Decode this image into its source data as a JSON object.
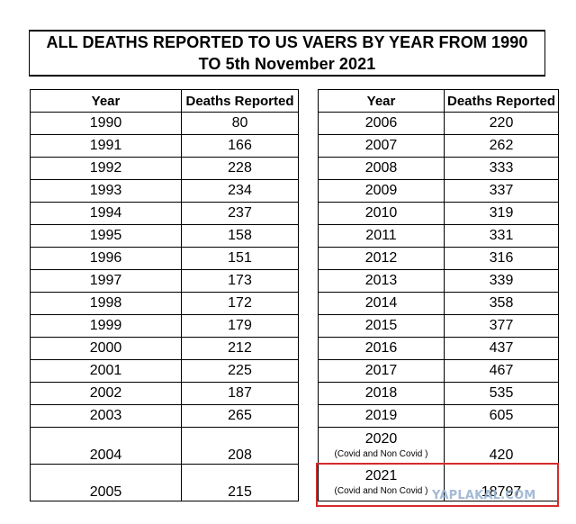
{
  "title": {
    "line1": "ALL DEATHS REPORTED TO US VAERS BY YEAR FROM 1990",
    "line2": "TO 5th November 2021"
  },
  "headers": {
    "year": "Year",
    "deaths": "Deaths Reported"
  },
  "left_rows": [
    {
      "year": "1990",
      "deaths": "80"
    },
    {
      "year": "1991",
      "deaths": "166"
    },
    {
      "year": "1992",
      "deaths": "228"
    },
    {
      "year": "1993",
      "deaths": "234"
    },
    {
      "year": "1994",
      "deaths": "237"
    },
    {
      "year": "1995",
      "deaths": "158"
    },
    {
      "year": "1996",
      "deaths": "151"
    },
    {
      "year": "1997",
      "deaths": "173"
    },
    {
      "year": "1998",
      "deaths": "172"
    },
    {
      "year": "1999",
      "deaths": "179"
    },
    {
      "year": "2000",
      "deaths": "212"
    },
    {
      "year": "2001",
      "deaths": "225"
    },
    {
      "year": "2002",
      "deaths": "187"
    },
    {
      "year": "2003",
      "deaths": "265"
    },
    {
      "year": "2004",
      "deaths": "208"
    },
    {
      "year": "2005",
      "deaths": "215"
    }
  ],
  "right_rows": [
    {
      "year": "2006",
      "deaths": "220"
    },
    {
      "year": "2007",
      "deaths": "262"
    },
    {
      "year": "2008",
      "deaths": "333"
    },
    {
      "year": "2009",
      "deaths": "337"
    },
    {
      "year": "2010",
      "deaths": "319"
    },
    {
      "year": "2011",
      "deaths": "331"
    },
    {
      "year": "2012",
      "deaths": "316"
    },
    {
      "year": "2013",
      "deaths": "339"
    },
    {
      "year": "2014",
      "deaths": "358"
    },
    {
      "year": "2015",
      "deaths": "377"
    },
    {
      "year": "2016",
      "deaths": "437"
    },
    {
      "year": "2017",
      "deaths": "467"
    },
    {
      "year": "2018",
      "deaths": "535"
    },
    {
      "year": "2019",
      "deaths": "605"
    },
    {
      "year": "2020",
      "note": "(Covid and Non Covid )",
      "deaths": "420"
    },
    {
      "year": "2021",
      "note": "(Covid and Non Covid )",
      "deaths": "18797"
    }
  ],
  "watermark": "YAPLAKAL.COM",
  "colors": {
    "highlight": "#d62a2a",
    "watermark": "#9ab4d2"
  }
}
